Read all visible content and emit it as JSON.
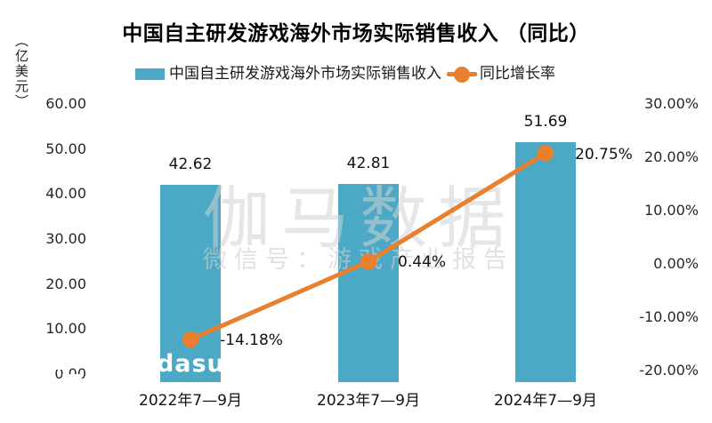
{
  "axes": {
    "left_title": "（亿美元）"
  },
  "legend": {
    "bar": {
      "label": "中国自主研发游戏海外市场实际销售收入"
    },
    "line": {
      "label": "同比增长率"
    }
  },
  "watermark": {
    "main": "伽马数据",
    "sub": "微信号：游戏产业报告",
    "overlay": "wdasu"
  },
  "colors": {
    "bar": "#4BA9C5",
    "line": "#E8802F",
    "text": "#1a1a1a"
  },
  "chart_data": {
    "type": "bar",
    "combo": "bar+line",
    "title": "中国自主研发游戏海外市场实际销售收入 （同比）",
    "categories": [
      "2022年7—9月",
      "2023年7—9月",
      "2024年7—9月"
    ],
    "series": [
      {
        "name": "中国自主研发游戏海外市场实际销售收入",
        "type": "bar",
        "axis": "left",
        "values": [
          42.62,
          42.81,
          51.69
        ],
        "labels": [
          "42.62",
          "42.81",
          "51.69"
        ]
      },
      {
        "name": "同比增长率",
        "type": "line",
        "axis": "right",
        "values": [
          -14.18,
          0.44,
          20.75
        ],
        "labels": [
          "-14.18%",
          "0.44%",
          "20.75%"
        ]
      }
    ],
    "left_axis": {
      "title": "（亿美元）",
      "ticks": [
        "60.00",
        "50.00",
        "40.00",
        "30.00",
        "20.00",
        "10.00",
        "0.00"
      ],
      "min": 0,
      "max": 60
    },
    "right_axis": {
      "ticks": [
        "30.00%",
        "20.00%",
        "10.00%",
        "0.00%",
        "-10.00%",
        "-20.00%"
      ],
      "min": -20,
      "max": 30
    },
    "grid": false,
    "legend_position": "top"
  }
}
